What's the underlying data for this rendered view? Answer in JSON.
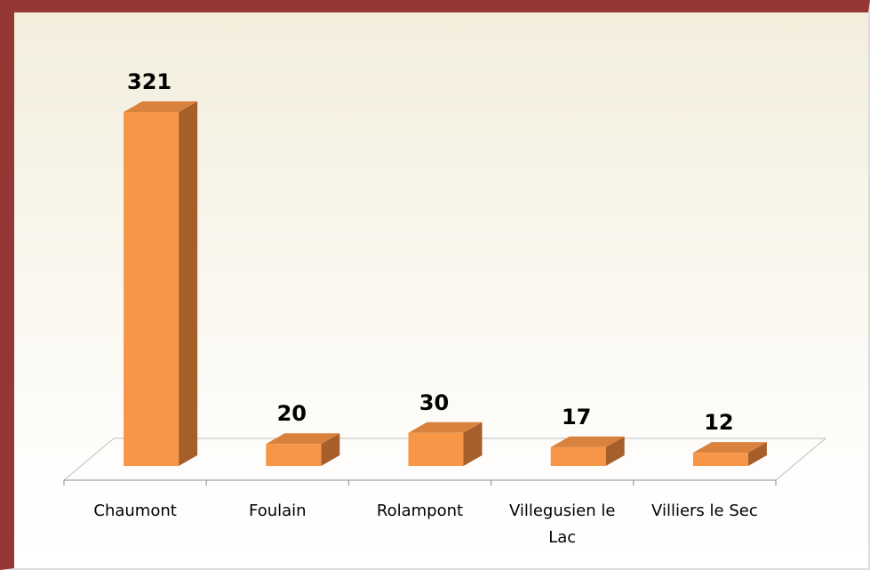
{
  "chart_data": {
    "type": "bar3d",
    "categories": [
      "Chaumont",
      "Foulain",
      "Rolampont",
      "Villegusien le Lac",
      "Villiers le Sec"
    ],
    "values": [
      321,
      20,
      30,
      17,
      12
    ],
    "color": "#f79646"
  }
}
